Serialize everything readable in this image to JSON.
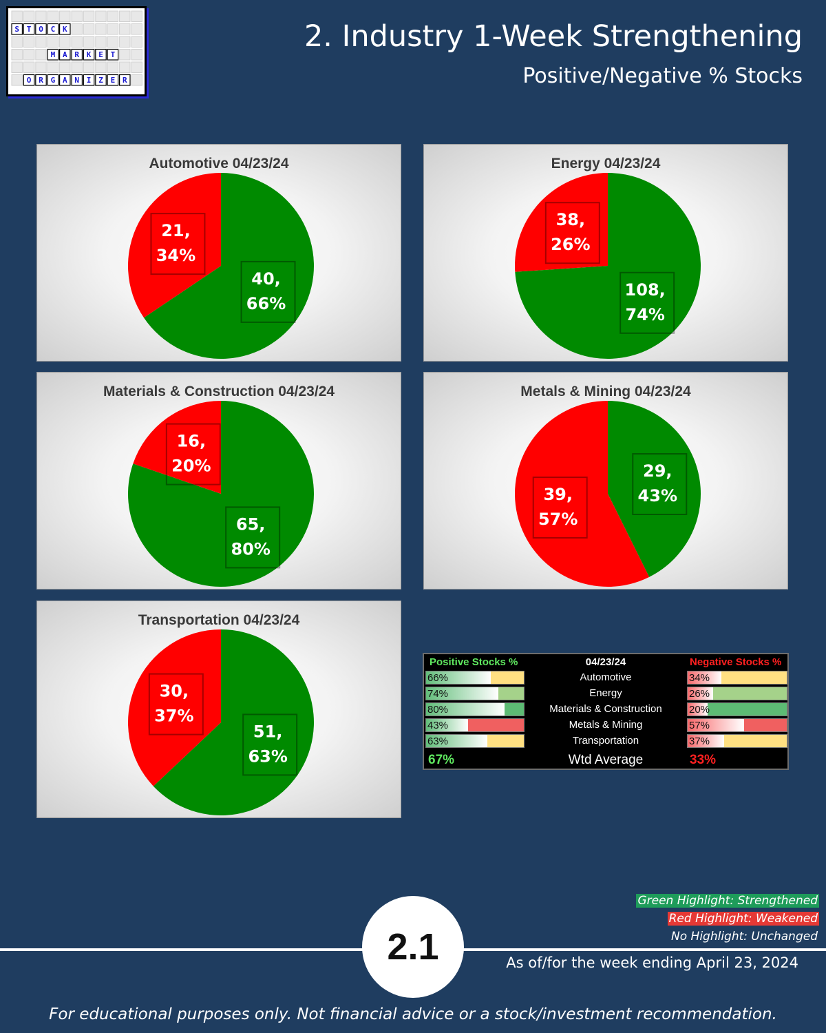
{
  "logo": {
    "words": [
      "STOCK",
      "MARKET",
      "ORGANIZER"
    ]
  },
  "header": {
    "title": "2. Industry 1-Week Strengthening",
    "subtitle": "Positive/Negative % Stocks"
  },
  "chart_data": [
    {
      "type": "pie",
      "title": "Automotive 04/23/24",
      "slices": [
        {
          "name": "Positive",
          "value": 40,
          "percent": 66,
          "color": "#008a00",
          "label": "40,\n66%"
        },
        {
          "name": "Negative",
          "value": 21,
          "percent": 34,
          "color": "#ff0000",
          "label": "21,\n34%"
        }
      ]
    },
    {
      "type": "pie",
      "title": "Energy 04/23/24",
      "slices": [
        {
          "name": "Positive",
          "value": 108,
          "percent": 74,
          "color": "#008a00",
          "label": "108,\n74%"
        },
        {
          "name": "Negative",
          "value": 38,
          "percent": 26,
          "color": "#ff0000",
          "label": "38,\n26%"
        }
      ]
    },
    {
      "type": "pie",
      "title": "Materials & Construction 04/23/24",
      "slices": [
        {
          "name": "Positive",
          "value": 65,
          "percent": 80,
          "color": "#008a00",
          "label": "65,\n80%"
        },
        {
          "name": "Negative",
          "value": 16,
          "percent": 20,
          "color": "#ff0000",
          "label": "16,\n20%"
        }
      ]
    },
    {
      "type": "pie",
      "title": "Metals & Mining 04/23/24",
      "slices": [
        {
          "name": "Positive",
          "value": 29,
          "percent": 43,
          "color": "#008a00",
          "label": "29,\n43%"
        },
        {
          "name": "Negative",
          "value": 39,
          "percent": 57,
          "color": "#ff0000",
          "label": "39,\n57%"
        }
      ]
    },
    {
      "type": "pie",
      "title": "Transportation 04/23/24",
      "slices": [
        {
          "name": "Positive",
          "value": 51,
          "percent": 63,
          "color": "#008a00",
          "label": "51,\n63%"
        },
        {
          "name": "Negative",
          "value": 30,
          "percent": 37,
          "color": "#ff0000",
          "label": "30,\n37%"
        }
      ]
    }
  ],
  "summary_table": {
    "header_positive": "Positive Stocks %",
    "header_date": "04/23/24",
    "header_negative": "Negative Stocks %",
    "rows": [
      {
        "industry": "Automotive",
        "positive": "66%",
        "positive_value": 66,
        "negative": "34%",
        "negative_value": 34,
        "change_color": "#ffe082"
      },
      {
        "industry": "Energy",
        "positive": "74%",
        "positive_value": 74,
        "negative": "26%",
        "negative_value": 26,
        "change_color": "#a5d28a"
      },
      {
        "industry": "Materials & Construction",
        "positive": "80%",
        "positive_value": 80,
        "negative": "20%",
        "negative_value": 20,
        "change_color": "#5dbb74"
      },
      {
        "industry": "Metals & Mining",
        "positive": "43%",
        "positive_value": 43,
        "negative": "57%",
        "negative_value": 57,
        "change_color": "#f06060"
      },
      {
        "industry": "Transportation",
        "positive": "63%",
        "positive_value": 63,
        "negative": "37%",
        "negative_value": 37,
        "change_color": "#ffe082"
      }
    ],
    "average_label": "Wtd Average",
    "average_positive": "67%",
    "average_negative": "33%"
  },
  "legend": {
    "green": "Green Highlight: Strengthened",
    "red": "Red Highlight: Weakened",
    "none": "No Highlight: Unchanged",
    "green_color": "#1e9c5a",
    "red_color": "#e53935"
  },
  "footer": {
    "page_number": "2.1",
    "as_of": "As of/for the week ending April 23, 2024",
    "disclaimer": "For educational purposes only. Not financial advice or a stock/investment recommendation."
  }
}
